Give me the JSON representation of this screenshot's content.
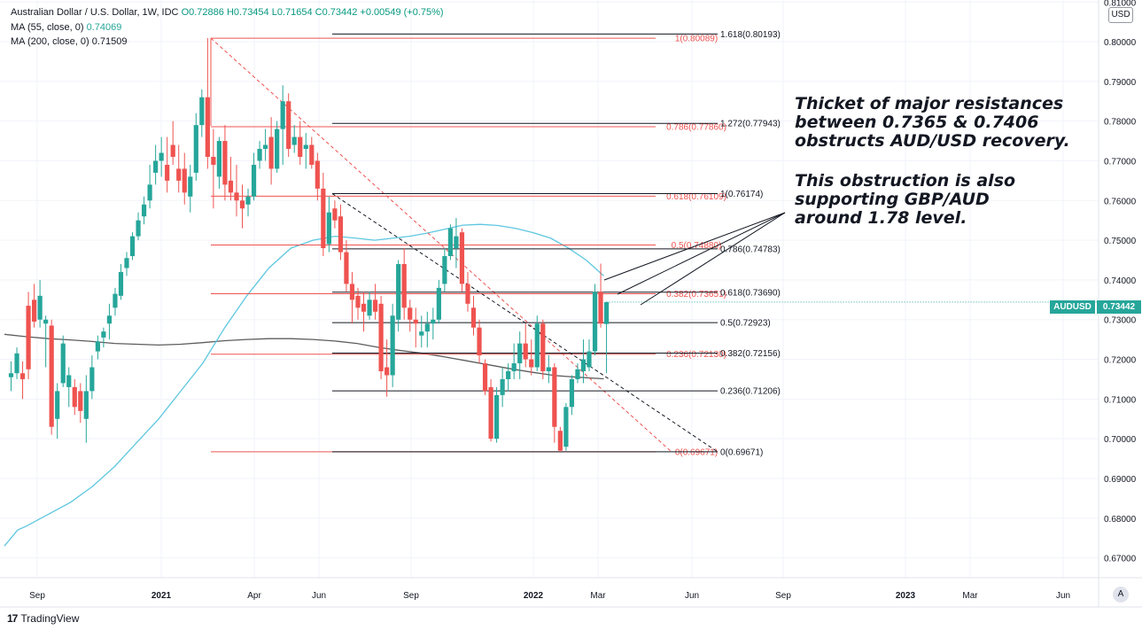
{
  "header": {
    "line1_title": "Australian Dollar / U.S. Dollar, 1W, IDC",
    "ohlc": "O0.72886 H0.73454 L0.71654 C0.73442 +0.00549 (+0.75%)",
    "ma55_label": "MA (55, close, 0)",
    "ma55_value": "0.74069",
    "ma200_label": "MA (200, close, 0)",
    "ma200_value": "0.71509"
  },
  "currency_button": "USD",
  "auto_button": "A",
  "price_tag": {
    "symbol": "AUDUSD",
    "value": "0.73442"
  },
  "branding": {
    "logo": "17",
    "name": "TradingView"
  },
  "annotation": {
    "block1": [
      "Thicket of major resistances",
      "between 0.7365 & 0.7406",
      "obstructs AUD/USD recovery."
    ],
    "block2": [
      "This obstruction is also",
      "supporting GBP/AUD",
      "around 1.78 level."
    ]
  },
  "chart_data": {
    "type": "candlestick",
    "symbol": "AUDUSD",
    "timeframe": "1W",
    "ylim": [
      0.665,
      0.8105
    ],
    "y_ticks": [
      "0.67000",
      "0.68000",
      "0.69000",
      "0.70000",
      "0.71000",
      "0.72000",
      "0.73000",
      "0.74000",
      "0.75000",
      "0.76000",
      "0.77000",
      "0.78000",
      "0.79000",
      "0.80000",
      "0.81000"
    ],
    "x_ticks": [
      {
        "label": "Sep",
        "bold": false
      },
      {
        "label": "2021",
        "bold": true
      },
      {
        "label": "Apr",
        "bold": false
      },
      {
        "label": "Jun",
        "bold": false
      },
      {
        "label": "Sep",
        "bold": false
      },
      {
        "label": "2022",
        "bold": true
      },
      {
        "label": "Mar",
        "bold": false
      },
      {
        "label": "Jun",
        "bold": false
      },
      {
        "label": "Sep",
        "bold": false
      },
      {
        "label": "2023",
        "bold": true
      },
      {
        "label": "Mar",
        "bold": false
      },
      {
        "label": "Jun",
        "bold": false
      }
    ],
    "candles": [
      [
        0.7155,
        0.7195,
        0.712,
        0.7165
      ],
      [
        0.7165,
        0.723,
        0.715,
        0.7215
      ],
      [
        0.7165,
        0.7195,
        0.71,
        0.715
      ],
      [
        0.7335,
        0.737,
        0.715,
        0.7175
      ],
      [
        0.735,
        0.739,
        0.728,
        0.7295
      ],
      [
        0.73,
        0.74,
        0.728,
        0.736
      ],
      [
        0.729,
        0.731,
        0.718,
        0.73
      ],
      [
        0.7285,
        0.73,
        0.701,
        0.703
      ],
      [
        0.705,
        0.714,
        0.7,
        0.712
      ],
      [
        0.714,
        0.726,
        0.713,
        0.724
      ],
      [
        0.713,
        0.718,
        0.708,
        0.716
      ],
      [
        0.713,
        0.715,
        0.706,
        0.708
      ],
      [
        0.712,
        0.714,
        0.704,
        0.707
      ],
      [
        0.705,
        0.716,
        0.699,
        0.712
      ],
      [
        0.712,
        0.721,
        0.71,
        0.718
      ],
      [
        0.722,
        0.726,
        0.72,
        0.7245
      ],
      [
        0.7255,
        0.728,
        0.723,
        0.727
      ],
      [
        0.729,
        0.734,
        0.725,
        0.731
      ],
      [
        0.733,
        0.738,
        0.731,
        0.7365
      ],
      [
        0.736,
        0.744,
        0.735,
        0.742
      ],
      [
        0.743,
        0.747,
        0.741,
        0.7455
      ],
      [
        0.746,
        0.752,
        0.745,
        0.751
      ],
      [
        0.751,
        0.757,
        0.75,
        0.755
      ],
      [
        0.756,
        0.761,
        0.754,
        0.759
      ],
      [
        0.76,
        0.769,
        0.758,
        0.764
      ],
      [
        0.767,
        0.774,
        0.764,
        0.77
      ],
      [
        0.77,
        0.776,
        0.766,
        0.772
      ],
      [
        0.769,
        0.776,
        0.762,
        0.765
      ],
      [
        0.774,
        0.78,
        0.769,
        0.771
      ],
      [
        0.768,
        0.774,
        0.762,
        0.765
      ],
      [
        0.768,
        0.772,
        0.759,
        0.762
      ],
      [
        0.761,
        0.769,
        0.757,
        0.766
      ],
      [
        0.767,
        0.782,
        0.765,
        0.779
      ],
      [
        0.779,
        0.788,
        0.776,
        0.786
      ],
      [
        0.786,
        0.8009,
        0.768,
        0.771
      ],
      [
        0.771,
        0.778,
        0.758,
        0.769
      ],
      [
        0.766,
        0.776,
        0.763,
        0.775
      ],
      [
        0.775,
        0.779,
        0.76,
        0.764
      ],
      [
        0.765,
        0.771,
        0.76,
        0.762
      ],
      [
        0.762,
        0.769,
        0.756,
        0.76
      ],
      [
        0.76,
        0.764,
        0.753,
        0.758
      ],
      [
        0.759,
        0.763,
        0.756,
        0.761
      ],
      [
        0.761,
        0.772,
        0.76,
        0.769
      ],
      [
        0.77,
        0.775,
        0.768,
        0.773
      ],
      [
        0.773,
        0.778,
        0.77,
        0.774
      ],
      [
        0.776,
        0.781,
        0.764,
        0.768
      ],
      [
        0.768,
        0.78,
        0.767,
        0.778
      ],
      [
        0.778,
        0.789,
        0.769,
        0.785
      ],
      [
        0.785,
        0.787,
        0.771,
        0.773
      ],
      [
        0.774,
        0.779,
        0.772,
        0.776
      ],
      [
        0.776,
        0.78,
        0.769,
        0.771
      ],
      [
        0.773,
        0.777,
        0.768,
        0.774
      ],
      [
        0.774,
        0.776,
        0.768,
        0.769
      ],
      [
        0.77,
        0.772,
        0.76,
        0.763
      ],
      [
        0.763,
        0.767,
        0.746,
        0.748
      ],
      [
        0.749,
        0.761,
        0.747,
        0.757
      ],
      [
        0.758,
        0.76,
        0.753,
        0.755
      ],
      [
        0.756,
        0.759,
        0.745,
        0.747
      ],
      [
        0.747,
        0.75,
        0.737,
        0.739
      ],
      [
        0.739,
        0.742,
        0.729,
        0.735
      ],
      [
        0.736,
        0.738,
        0.73,
        0.733
      ],
      [
        0.734,
        0.737,
        0.727,
        0.732
      ],
      [
        0.731,
        0.737,
        0.73,
        0.735
      ],
      [
        0.735,
        0.739,
        0.73,
        0.732
      ],
      [
        0.734,
        0.736,
        0.715,
        0.717
      ],
      [
        0.718,
        0.725,
        0.7106,
        0.716
      ],
      [
        0.716,
        0.734,
        0.713,
        0.731
      ],
      [
        0.73,
        0.745,
        0.727,
        0.744
      ],
      [
        0.744,
        0.748,
        0.73,
        0.733
      ],
      [
        0.733,
        0.735,
        0.727,
        0.73
      ],
      [
        0.73,
        0.733,
        0.723,
        0.729
      ],
      [
        0.726,
        0.731,
        0.723,
        0.727
      ],
      [
        0.727,
        0.732,
        0.723,
        0.729
      ],
      [
        0.729,
        0.733,
        0.725,
        0.73
      ],
      [
        0.73,
        0.74,
        0.729,
        0.738
      ],
      [
        0.739,
        0.748,
        0.737,
        0.746
      ],
      [
        0.746,
        0.754,
        0.745,
        0.753
      ],
      [
        0.748,
        0.7556,
        0.743,
        0.751
      ],
      [
        0.752,
        0.753,
        0.737,
        0.739
      ],
      [
        0.739,
        0.742,
        0.732,
        0.734
      ],
      [
        0.733,
        0.736,
        0.726,
        0.728
      ],
      [
        0.728,
        0.73,
        0.719,
        0.721
      ],
      [
        0.719,
        0.72,
        0.711,
        0.712
      ],
      [
        0.713,
        0.715,
        0.6993,
        0.7
      ],
      [
        0.7,
        0.713,
        0.699,
        0.711
      ],
      [
        0.711,
        0.718,
        0.708,
        0.715
      ],
      [
        0.715,
        0.719,
        0.712,
        0.717
      ],
      [
        0.717,
        0.724,
        0.715,
        0.719
      ],
      [
        0.719,
        0.727,
        0.715,
        0.724
      ],
      [
        0.724,
        0.729,
        0.718,
        0.72
      ],
      [
        0.72,
        0.725,
        0.716,
        0.718
      ],
      [
        0.718,
        0.731,
        0.717,
        0.729
      ],
      [
        0.729,
        0.73,
        0.715,
        0.717
      ],
      [
        0.717,
        0.721,
        0.714,
        0.718
      ],
      [
        0.718,
        0.719,
        0.699,
        0.703
      ],
      [
        0.702,
        0.703,
        0.6967,
        0.697
      ],
      [
        0.698,
        0.709,
        0.697,
        0.708
      ],
      [
        0.708,
        0.716,
        0.706,
        0.715
      ],
      [
        0.715,
        0.719,
        0.714,
        0.7175
      ],
      [
        0.717,
        0.725,
        0.714,
        0.72
      ],
      [
        0.718,
        0.725,
        0.717,
        0.722
      ],
      [
        0.722,
        0.739,
        0.721,
        0.737
      ],
      [
        0.737,
        0.7441,
        0.728,
        0.729
      ],
      [
        0.7289,
        0.7345,
        0.7165,
        0.7344
      ]
    ],
    "ma55": [
      [
        0,
        0.673
      ],
      [
        15,
        0.677
      ],
      [
        25,
        0.678
      ],
      [
        50,
        0.681
      ],
      [
        75,
        0.684
      ],
      [
        100,
        0.688
      ],
      [
        125,
        0.693
      ],
      [
        150,
        0.699
      ],
      [
        175,
        0.705
      ],
      [
        200,
        0.712
      ],
      [
        225,
        0.719
      ],
      [
        250,
        0.728
      ],
      [
        275,
        0.736
      ],
      [
        300,
        0.743
      ],
      [
        325,
        0.748
      ],
      [
        350,
        0.75
      ],
      [
        375,
        0.751
      ],
      [
        400,
        0.7505
      ],
      [
        420,
        0.75
      ],
      [
        440,
        0.7505
      ],
      [
        460,
        0.751
      ],
      [
        480,
        0.7518
      ],
      [
        500,
        0.7528
      ],
      [
        520,
        0.7538
      ],
      [
        540,
        0.754
      ],
      [
        560,
        0.7537
      ],
      [
        580,
        0.753
      ],
      [
        600,
        0.7519
      ],
      [
        620,
        0.7505
      ],
      [
        640,
        0.748
      ],
      [
        660,
        0.745
      ],
      [
        680,
        0.741
      ]
    ],
    "ma200": [
      [
        0,
        0.7263
      ],
      [
        25,
        0.7257
      ],
      [
        50,
        0.7252
      ],
      [
        75,
        0.7249
      ],
      [
        100,
        0.7245
      ],
      [
        125,
        0.724
      ],
      [
        150,
        0.7238
      ],
      [
        175,
        0.7236
      ],
      [
        200,
        0.7238
      ],
      [
        225,
        0.7242
      ],
      [
        250,
        0.7247
      ],
      [
        275,
        0.725
      ],
      [
        300,
        0.7252
      ],
      [
        325,
        0.7252
      ],
      [
        350,
        0.725
      ],
      [
        375,
        0.7246
      ],
      [
        400,
        0.724
      ],
      [
        425,
        0.723
      ],
      [
        450,
        0.7222
      ],
      [
        475,
        0.7215
      ],
      [
        500,
        0.7206
      ],
      [
        525,
        0.7196
      ],
      [
        550,
        0.7186
      ],
      [
        575,
        0.7176
      ],
      [
        600,
        0.7167
      ],
      [
        625,
        0.7159
      ],
      [
        650,
        0.7155
      ],
      [
        680,
        0.7151
      ]
    ],
    "fib_red": [
      {
        "label": "1(0.80089)",
        "y": 0.80089
      },
      {
        "label": "0.786(0.77860)",
        "y": 0.7786
      },
      {
        "label": "0.618(0.76109)",
        "y": 0.76109
      },
      {
        "label": "0.5(0.74880)",
        "y": 0.7488
      },
      {
        "label": "0.382(0.73651)",
        "y": 0.73651
      },
      {
        "label": "0.236(0.72130)",
        "y": 0.7213
      },
      {
        "label": "0(0.69671)",
        "y": 0.69671
      }
    ],
    "fib_black": [
      {
        "label": "1.618(0.80193)",
        "y": 0.80193
      },
      {
        "label": "1.272(0.77943)",
        "y": 0.77943
      },
      {
        "label": "1(0.76174)",
        "y": 0.76174
      },
      {
        "label": "0.786(0.74783)",
        "y": 0.74783
      },
      {
        "label": "0.618(0.73690)",
        "y": 0.7369
      },
      {
        "label": "0.5(0.72923)",
        "y": 0.72923
      },
      {
        "label": "0.382(0.72156)",
        "y": 0.72156
      },
      {
        "label": "0.236(0.71206)",
        "y": 0.71206
      },
      {
        "label": "0(0.69671)",
        "y": 0.69671
      }
    ],
    "colors": {
      "up": "#26a69a",
      "down": "#ef5350",
      "ma55": "#5ec7e0",
      "ma200": "#5d5d5d",
      "fib_red": "#ef5350",
      "fib_black": "#131722",
      "grid": "#f0f3fa"
    }
  }
}
